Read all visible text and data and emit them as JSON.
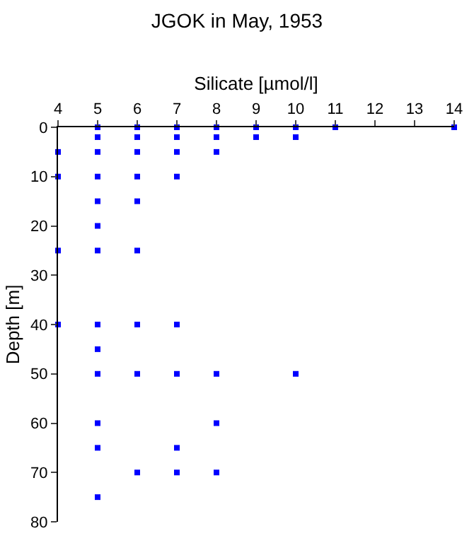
{
  "chart_data": {
    "type": "scatter",
    "title": "JGOK in May, 1953",
    "xlabel": "Silicate [µmol/l]",
    "ylabel": "Depth [m]",
    "x": [
      5,
      6,
      7,
      8,
      9,
      10,
      11,
      14,
      5,
      6,
      7,
      8,
      9,
      10,
      4,
      5,
      6,
      7,
      8,
      4,
      5,
      6,
      7,
      5,
      6,
      5,
      4,
      5,
      6,
      4,
      5,
      6,
      7,
      5,
      5,
      6,
      7,
      8,
      10,
      5,
      8,
      5,
      7,
      6,
      7,
      8,
      5
    ],
    "series": [
      {
        "color": "#0000ff",
        "values": [
          0,
          0,
          0,
          0,
          0,
          0,
          0,
          0,
          2,
          2,
          2,
          2,
          2,
          2,
          5,
          5,
          5,
          5,
          5,
          10,
          10,
          10,
          10,
          15,
          15,
          20,
          25,
          25,
          25,
          40,
          40,
          40,
          40,
          45,
          50,
          50,
          50,
          50,
          50,
          60,
          60,
          65,
          65,
          70,
          70,
          70,
          75
        ]
      }
    ],
    "xlim": [
      4,
      14
    ],
    "xticks": [
      4,
      5,
      6,
      7,
      8,
      9,
      10,
      11,
      12,
      13,
      14
    ],
    "ylim": [
      80,
      0
    ],
    "yticks": [
      0,
      10,
      20,
      30,
      40,
      50,
      60,
      70,
      80
    ],
    "grid": false,
    "legend": false,
    "marker": "square"
  }
}
